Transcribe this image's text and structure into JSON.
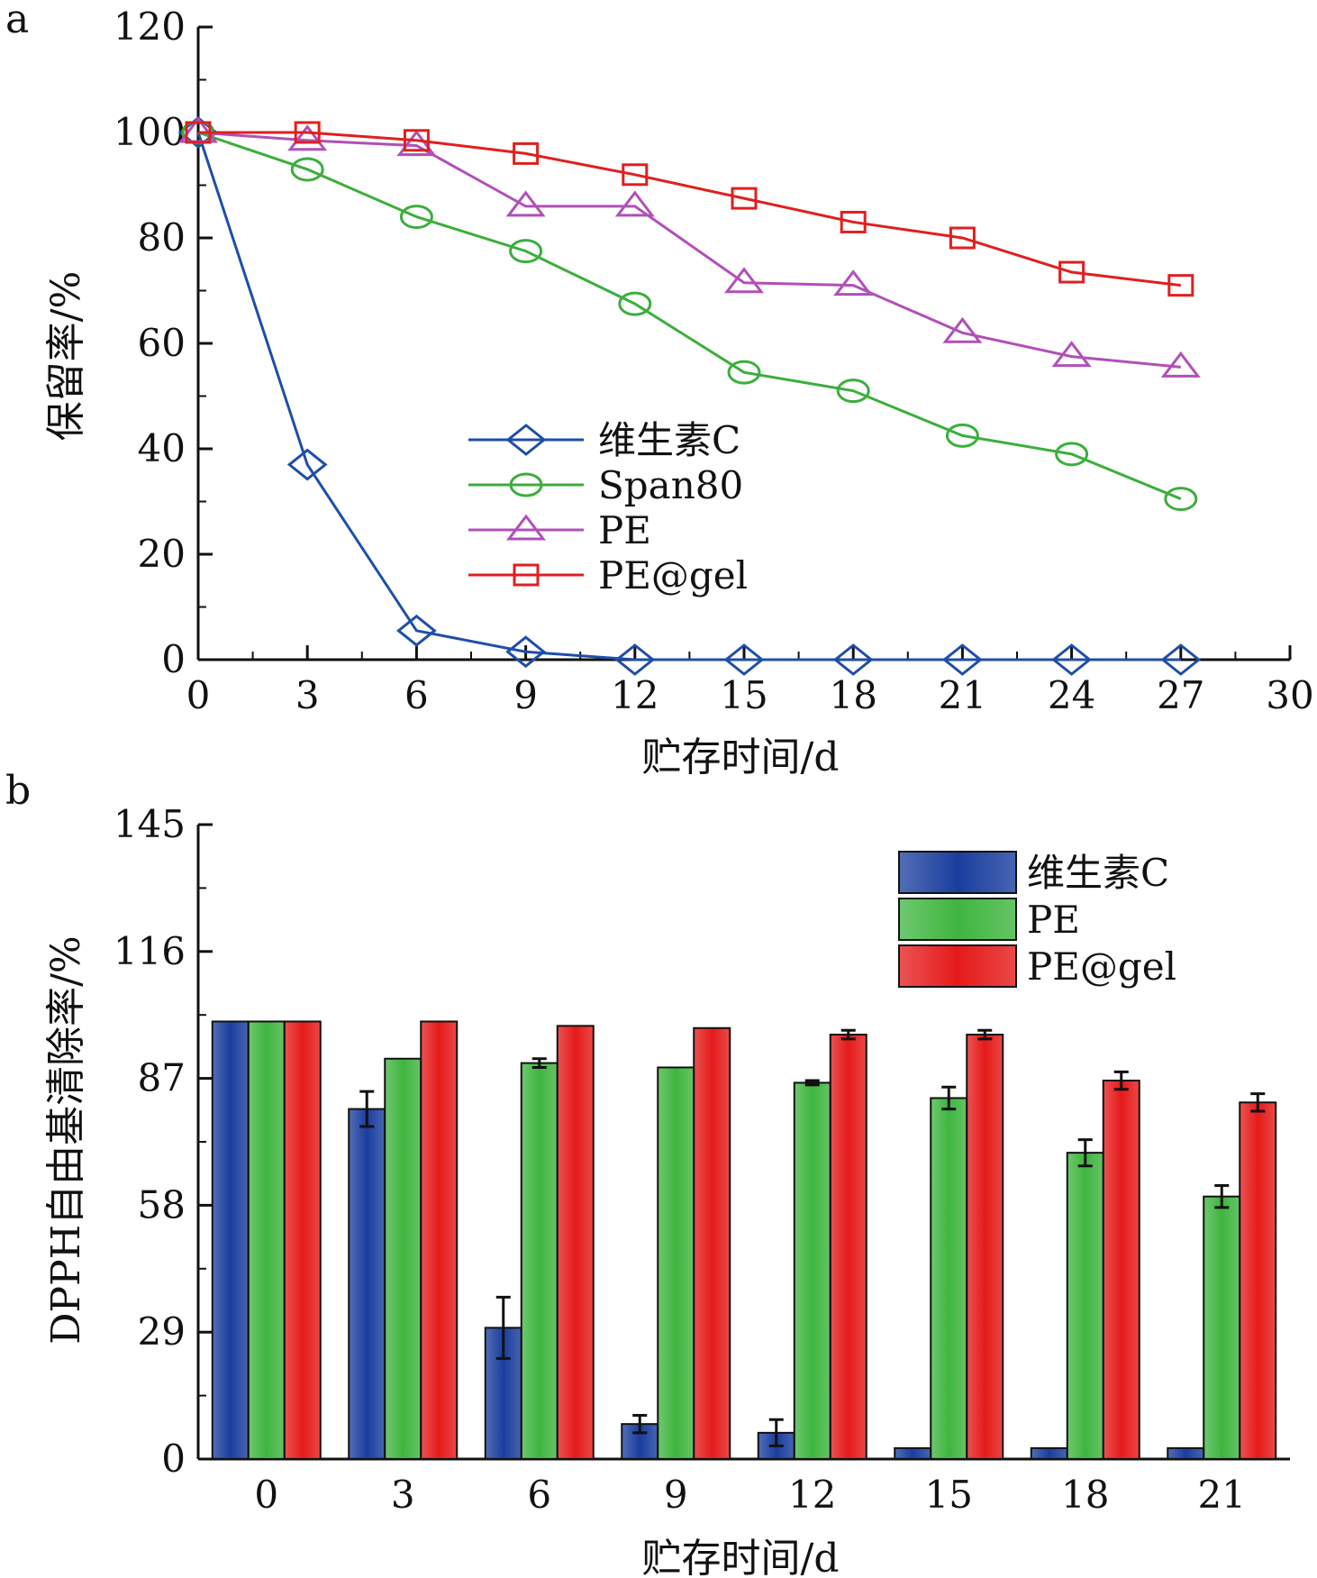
{
  "chart_data": [
    {
      "panel_label": "a",
      "type": "line",
      "xlabel": "贮存时间/d",
      "ylabel": "保留率/%",
      "xlim": [
        0,
        30
      ],
      "ylim": [
        0,
        120
      ],
      "xticks": [
        0,
        3,
        6,
        9,
        12,
        15,
        18,
        21,
        24,
        27,
        30
      ],
      "yticks": [
        0,
        20,
        40,
        60,
        80,
        100,
        120
      ],
      "x": [
        0,
        3,
        6,
        9,
        12,
        15,
        18,
        21,
        24,
        27
      ],
      "legend_position": "center",
      "series": [
        {
          "name": "维生素C",
          "color": "#1f4ea8",
          "marker": "diamond",
          "values": [
            100,
            37,
            5.5,
            1.5,
            0,
            0,
            0,
            0,
            0,
            0
          ]
        },
        {
          "name": "Span80",
          "color": "#3cae3c",
          "marker": "circle",
          "values": [
            100,
            93,
            84,
            77.5,
            67.5,
            54.5,
            51,
            42.5,
            39,
            30.5
          ]
        },
        {
          "name": "PE",
          "color": "#b050b8",
          "marker": "triangle",
          "values": [
            100,
            98.5,
            97.5,
            86,
            86,
            71.5,
            71,
            62,
            57.5,
            55.5
          ]
        },
        {
          "name": "PE@gel",
          "color": "#e01f1f",
          "marker": "square",
          "values": [
            100,
            100,
            98.5,
            96,
            92,
            87.5,
            83,
            80,
            73.5,
            71
          ]
        }
      ]
    },
    {
      "panel_label": "b",
      "type": "bar",
      "xlabel": "贮存时间/d",
      "ylabel": "DPPH自由基清除率/%",
      "ylim": [
        0,
        145
      ],
      "yticks": [
        0,
        29,
        58,
        87,
        116,
        145
      ],
      "categories": [
        "0",
        "3",
        "6",
        "9",
        "12",
        "15",
        "18",
        "21"
      ],
      "legend_position": "top-right",
      "series": [
        {
          "name": "维生素C",
          "color": "#1a3e9e",
          "values": [
            100,
            80,
            30,
            8,
            6,
            2.5,
            2.5,
            2.5
          ],
          "errors": [
            0,
            4,
            7,
            2,
            3,
            0,
            0,
            0
          ]
        },
        {
          "name": "PE",
          "color": "#3fb53f",
          "values": [
            100,
            91.5,
            90.5,
            89.5,
            86,
            82.5,
            70,
            60
          ],
          "errors": [
            0,
            0,
            1,
            0,
            0.5,
            2.5,
            3,
            2.5
          ]
        },
        {
          "name": "PE@gel",
          "color": "#e51a1a",
          "values": [
            100,
            100,
            99,
            98.5,
            97,
            97,
            86.5,
            81.5
          ],
          "errors": [
            0,
            0,
            0,
            0,
            1,
            1,
            2,
            2
          ]
        }
      ]
    }
  ]
}
